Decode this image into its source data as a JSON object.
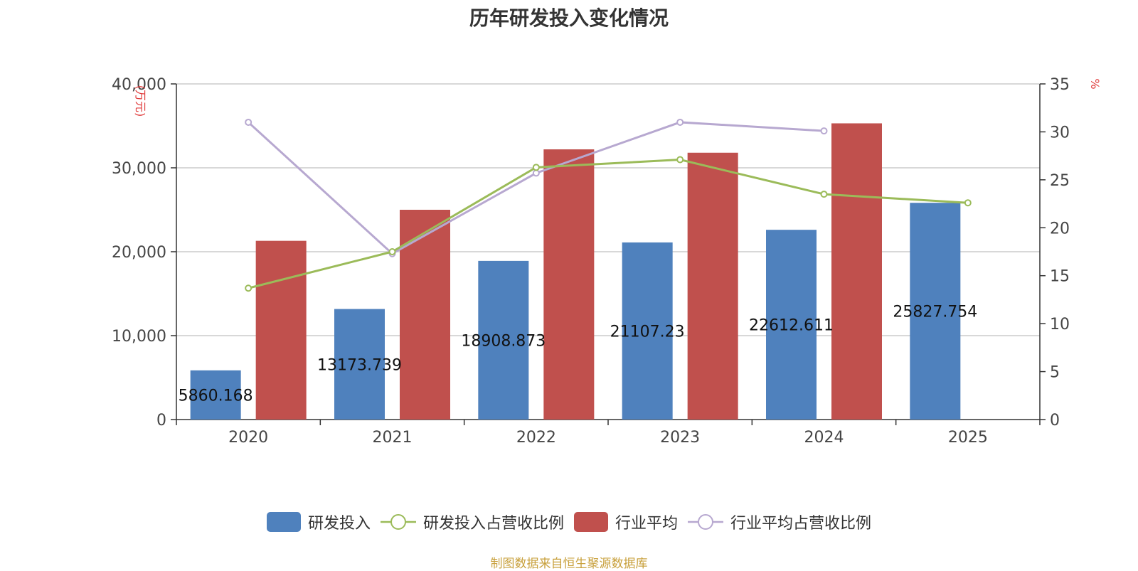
{
  "chart_data": {
    "type": "bar",
    "title": "历年研发投入变化情况",
    "categories": [
      "2020",
      "2021",
      "2022",
      "2023",
      "2024",
      "2025"
    ],
    "left_axis": {
      "unit_label": "(万元)",
      "ylim": [
        0,
        40000
      ],
      "ticks": [
        "0",
        "10,000",
        "20,000",
        "30,000",
        "40,000"
      ],
      "tick_values": [
        0,
        10000,
        20000,
        30000,
        40000
      ]
    },
    "right_axis": {
      "unit_label": "%",
      "ylim": [
        0,
        35
      ],
      "ticks": [
        "0",
        "5",
        "10",
        "15",
        "20",
        "25",
        "30",
        "35"
      ],
      "tick_values": [
        0,
        5,
        10,
        15,
        20,
        25,
        30,
        35
      ]
    },
    "series": [
      {
        "name": "研发投入",
        "type": "bar",
        "axis": "left",
        "color": "#4f81bd",
        "values": [
          5860.168,
          13173.739,
          18908.873,
          21107.23,
          22612.611,
          25827.754
        ],
        "data_labels": [
          "5860.168",
          "13173.739",
          "18908.873",
          "21107.23",
          "22612.611",
          "25827.754"
        ]
      },
      {
        "name": "研发投入占营收比例",
        "type": "line",
        "axis": "right",
        "color": "#9bbb59",
        "values": [
          13.7,
          17.5,
          26.3,
          27.1,
          23.5,
          22.6
        ]
      },
      {
        "name": "行业平均",
        "type": "bar",
        "axis": "left",
        "color": "#c0504d",
        "values": [
          21300,
          25000,
          32200,
          31800,
          35300,
          null
        ]
      },
      {
        "name": "行业平均占营收比例",
        "type": "line",
        "axis": "right",
        "color": "#b7a8d0",
        "values": [
          31.0,
          17.3,
          25.7,
          31.0,
          30.1,
          null
        ]
      }
    ],
    "grid": true,
    "legend_position": "bottom"
  },
  "footer": {
    "source": "制图数据来自恒生聚源数据库"
  }
}
